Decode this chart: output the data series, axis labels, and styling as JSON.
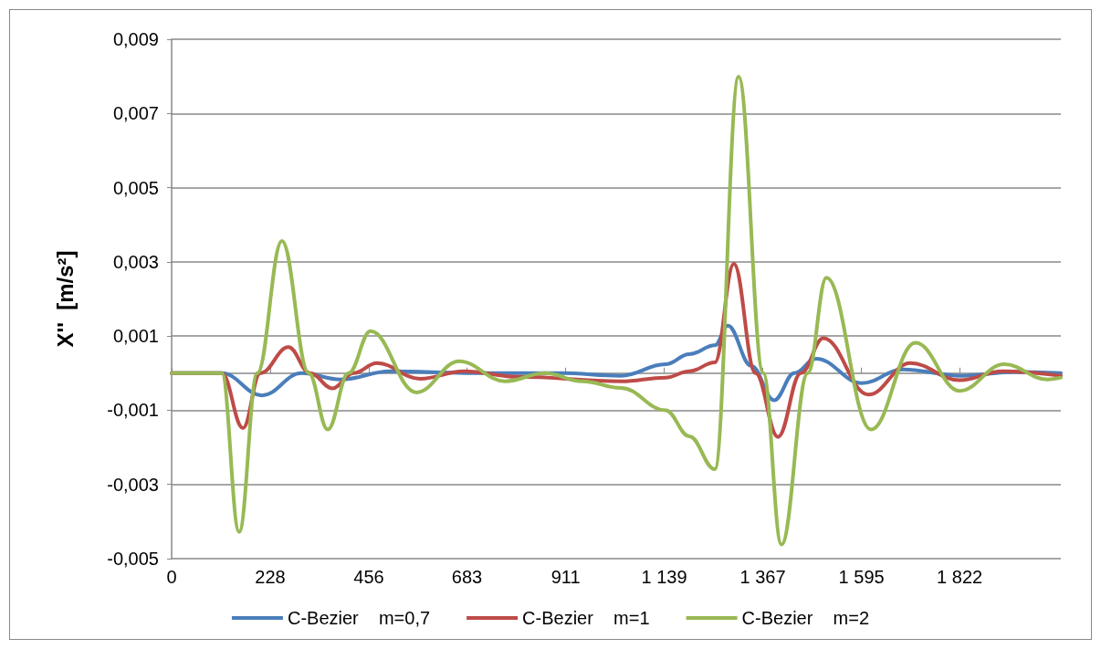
{
  "chart_data": {
    "type": "line",
    "ylabel": "X''  [m/s²]",
    "xlim": [
      0,
      2056
    ],
    "xticks": [
      0,
      228,
      456,
      683,
      911,
      {
        "value": 1139,
        "label": "1 139"
      },
      {
        "value": 1367,
        "label": "1 367"
      },
      {
        "value": 1595,
        "label": "1 595"
      },
      {
        "value": 1822,
        "label": "1 822"
      }
    ],
    "ylim": [
      -0.005,
      0.009
    ],
    "yticks": [
      {
        "value": -0.005,
        "label": "-0,005"
      },
      {
        "value": -0.003,
        "label": "-0,003"
      },
      {
        "value": -0.001,
        "label": "-0,001"
      },
      {
        "value": 0.001,
        "label": "0,001"
      },
      {
        "value": 0.003,
        "label": "0,003"
      },
      {
        "value": 0.005,
        "label": "0,005"
      },
      {
        "value": 0.007,
        "label": "0,007"
      },
      {
        "value": 0.009,
        "label": "0,009"
      }
    ],
    "grid": "y",
    "legend": "bottom",
    "marker": "none",
    "line_style": "solid",
    "series": [
      {
        "name": "C-Bezier    m=0,7",
        "color": "#4a7ebb",
        "x": [
          0,
          116,
          209,
          300,
          391,
          505,
          700,
          900,
          1039,
          1142,
          1197,
          1256,
          1286,
          1340,
          1393,
          1440,
          1490,
          1596,
          1691,
          1826,
          1950,
          2056
        ],
        "values": [
          0,
          0,
          -0.0006,
          0,
          -0.00017,
          5e-05,
          0,
          0,
          -7e-05,
          0.00024,
          0.00051,
          0.00075,
          0.00128,
          0.0002,
          -0.00073,
          0,
          0.00039,
          -0.00027,
          0.0001,
          -7e-05,
          3e-05,
          0
        ]
      },
      {
        "name": "C-Bezier    m=1",
        "color": "#be4b48",
        "x": [
          0,
          116,
          165,
          205,
          270,
          320,
          372,
          420,
          475,
          574,
          676,
          800,
          1039,
          1142,
          1197,
          1256,
          1300,
          1350,
          1402,
          1455,
          1507,
          1611,
          1708,
          1822,
          1921,
          2056
        ],
        "values": [
          0,
          0,
          -0.00148,
          0,
          0.0007,
          0,
          -0.00041,
          0,
          0.00027,
          -0.00015,
          5e-05,
          -0.0001,
          -0.00022,
          -0.00012,
          5e-05,
          0.00029,
          0.00295,
          0,
          -0.00172,
          0,
          0.00094,
          -0.00058,
          0.00027,
          -0.00019,
          5e-05,
          -7e-05
        ]
      },
      {
        "name": "C-Bezier    m=2",
        "color": "#98b954",
        "x": [
          0,
          116,
          156,
          198,
          255,
          317,
          361,
          409,
          460,
          566,
          665,
          771,
          863,
          950,
          1039,
          1142,
          1197,
          1256,
          1311,
          1368,
          1410,
          1471,
          1514,
          1617,
          1720,
          1822,
          1925,
          2025,
          2056
        ],
        "values": [
          0,
          0,
          -0.00428,
          0,
          0.00356,
          0,
          -0.00152,
          0,
          0.00113,
          -0.00052,
          0.00032,
          -0.00022,
          0,
          -0.00022,
          -0.0004,
          -0.001,
          -0.0017,
          -0.00259,
          0.00799,
          0,
          -0.00462,
          0,
          0.00257,
          -0.00152,
          0.00082,
          -0.00048,
          0.00024,
          -0.00017,
          -0.00012
        ]
      }
    ]
  }
}
